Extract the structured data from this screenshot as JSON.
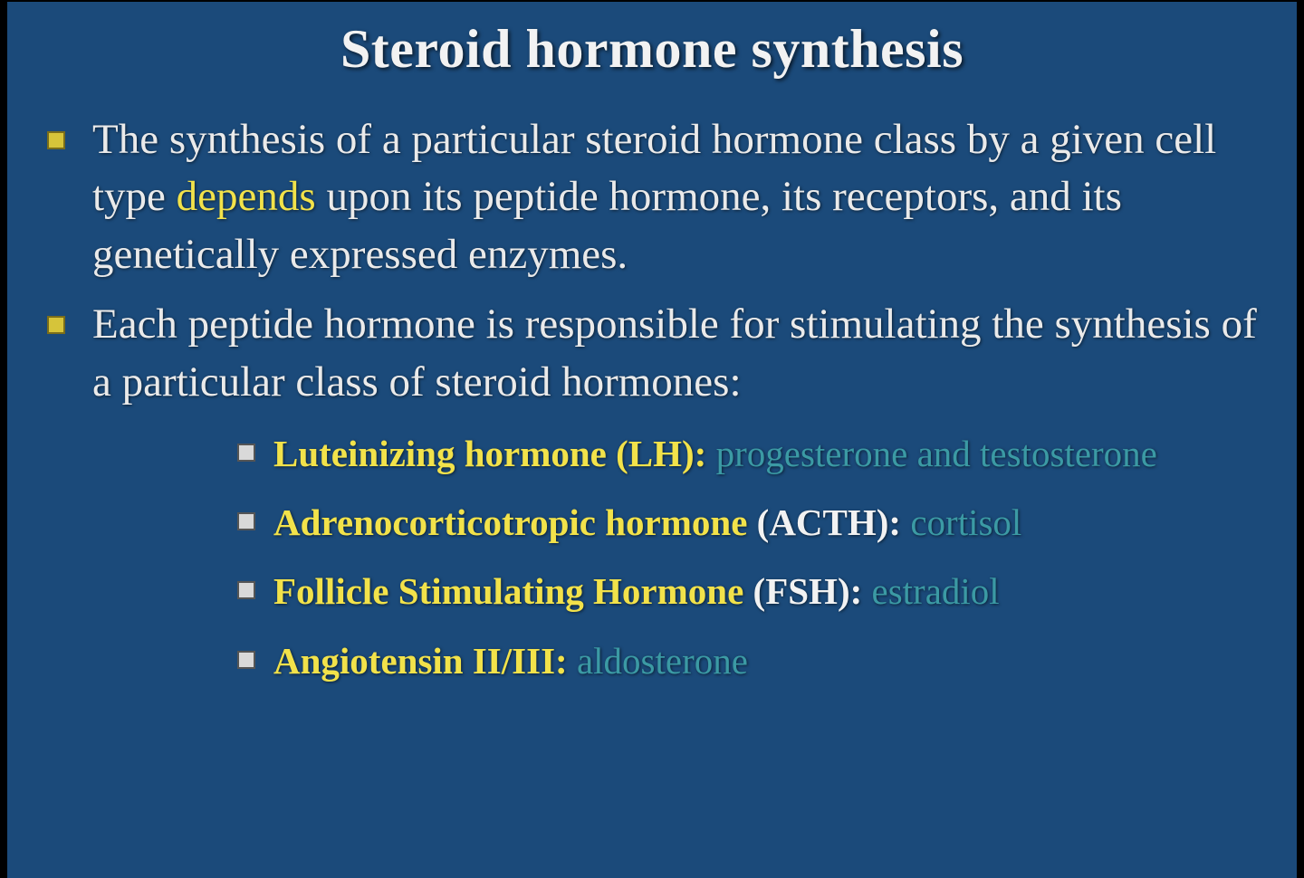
{
  "slide": {
    "title": "Steroid hormone synthesis",
    "colors": {
      "background": "#1b4a7a",
      "title_text": "#f2f2f2",
      "body_text": "#eaeaea",
      "highlight_yellow": "#f2e24a",
      "highlight_teal": "#3b9aa4",
      "bullet_level1_fill": "#d6c43a",
      "bullet_level1_border": "#7a6d1a",
      "bullet_level2_fill": "#d9d9d9",
      "bullet_level2_border": "#555555",
      "frame_border": "#000000"
    },
    "typography": {
      "title_fontsize_pt": 44,
      "body_fontsize_pt": 35,
      "sub_fontsize_pt": 30,
      "font_family": "Garamond"
    },
    "bullets": [
      {
        "pre": "The synthesis of a particular steroid hormone class by a given cell type ",
        "kw": "depends",
        "post": " upon its peptide hormone, its receptors, and its genetically expressed enzymes."
      },
      {
        "text": "Each peptide hormone is responsible for stimulating the synthesis of a particular class of steroid hormones:",
        "sub": [
          {
            "name": "Luteinizing hormone ",
            "abbr": "(LH):",
            "target": " progesterone and testosterone"
          },
          {
            "name": "Adrenocorticotropic hormone",
            "abbr": " (ACTH):",
            "target": " cortisol"
          },
          {
            "name": "Follicle Stimulating Hormone",
            "abbr": " (FSH):",
            "target": " estradiol"
          },
          {
            "name": "Angiotensin II/III:",
            "abbr": "",
            "target": " aldosterone"
          }
        ]
      }
    ]
  }
}
